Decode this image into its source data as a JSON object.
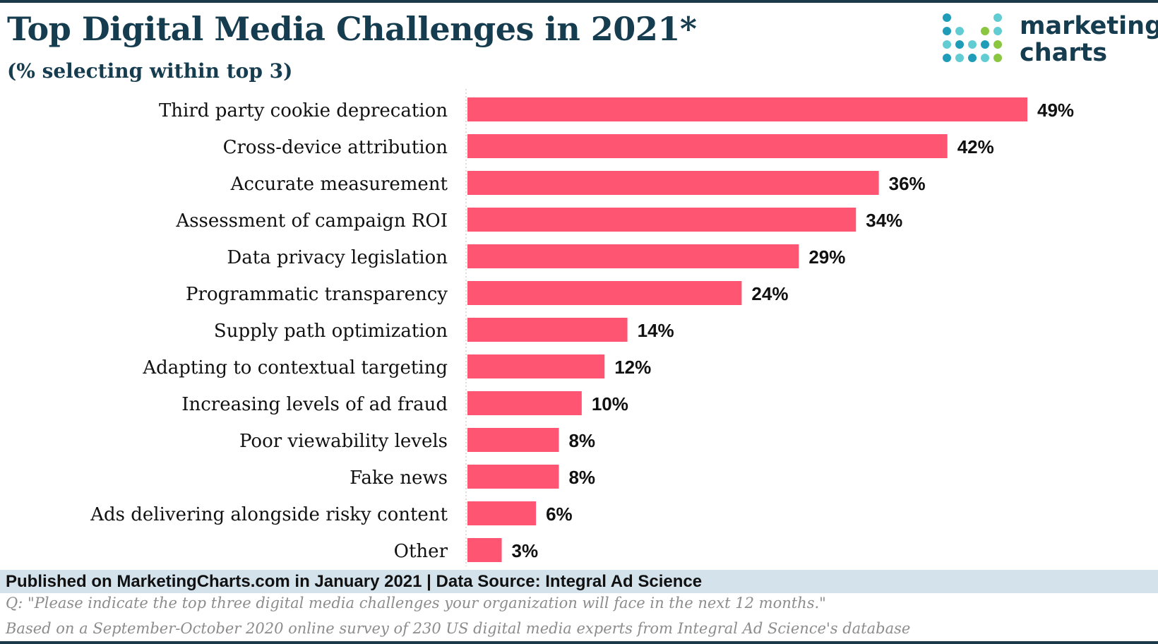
{
  "header": {
    "title": "Top Digital Media Challenges in 2021*",
    "subtitle": "(% selecting within top 3)"
  },
  "logo": {
    "line1": "marketing",
    "line2": "charts",
    "colors": [
      "#1e9cb8",
      "#62ccd3",
      "#8ac640"
    ]
  },
  "chart_data": {
    "type": "bar",
    "orientation": "horizontal",
    "title": "Top Digital Media Challenges in 2021*",
    "subtitle": "(% selecting within top 3)",
    "categories": [
      "Third party cookie deprecation",
      "Cross-device attribution",
      "Accurate measurement",
      "Assessment of campaign ROI",
      "Data privacy legislation",
      "Programmatic transparency",
      "Supply path optimization",
      "Adapting to contextual targeting",
      "Increasing levels of ad fraud",
      "Poor viewability levels",
      "Fake news",
      "Ads delivering alongside risky content",
      "Other"
    ],
    "values": [
      49,
      42,
      36,
      34,
      29,
      24,
      14,
      12,
      10,
      8,
      8,
      6,
      3
    ],
    "value_labels": [
      "49%",
      "42%",
      "36%",
      "34%",
      "29%",
      "24%",
      "14%",
      "12%",
      "10%",
      "8%",
      "8%",
      "6%",
      "3%"
    ],
    "unit": "%",
    "xlim": [
      0,
      49
    ],
    "xlabel": "",
    "ylabel": "",
    "grid": false,
    "legend": "none",
    "bar_color": "#fd5572"
  },
  "footer": {
    "published": "Published on MarketingCharts.com in January 2021 | Data Source: Integral Ad Science",
    "question": "Q: \"Please indicate the top three digital media challenges your organization will face in the next 12 months.\"",
    "basis": "Based on a September-October 2020 online survey of 230 US digital media experts from Integral Ad Science's database"
  }
}
